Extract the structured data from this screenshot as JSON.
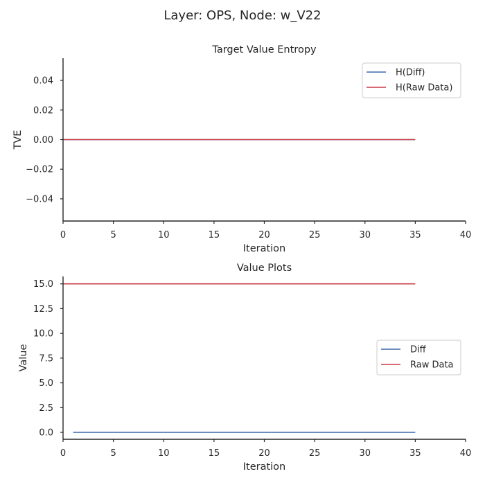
{
  "figure": {
    "suptitle": "Layer: OPS, Node: w_V22"
  },
  "colors": {
    "diff": "#3a68a8",
    "raw": "#c83c44"
  },
  "chart_data": [
    {
      "type": "line",
      "title": "Target Value Entropy",
      "xlabel": "Iteration",
      "ylabel": "TVE",
      "xlim": [
        0,
        40
      ],
      "ylim": [
        -0.055,
        0.055
      ],
      "xticks": [
        0,
        5,
        10,
        15,
        20,
        25,
        30,
        35,
        40
      ],
      "yticks": [
        -0.04,
        -0.02,
        0.0,
        0.02,
        0.04
      ],
      "ytick_labels": [
        "−0.04",
        "−0.02",
        "0.00",
        "0.02",
        "0.04"
      ],
      "legend": "top-right",
      "grid": false,
      "series": [
        {
          "name": "H(Diff)",
          "color": "#3a68a8",
          "x": [
            0,
            35
          ],
          "y": [
            0,
            0
          ]
        },
        {
          "name": "H(Raw Data)",
          "color": "#c83c44",
          "x": [
            0,
            35
          ],
          "y": [
            0,
            0
          ]
        }
      ]
    },
    {
      "type": "line",
      "title": "Value Plots",
      "xlabel": "Iteration",
      "ylabel": "Value",
      "xlim": [
        0,
        40
      ],
      "ylim": [
        -0.7,
        15.75
      ],
      "xticks": [
        0,
        5,
        10,
        15,
        20,
        25,
        30,
        35,
        40
      ],
      "yticks": [
        0.0,
        2.5,
        5.0,
        7.5,
        10.0,
        12.5,
        15.0
      ],
      "ytick_labels": [
        "0.0",
        "2.5",
        "5.0",
        "7.5",
        "10.0",
        "12.5",
        "15.0"
      ],
      "legend": "center-right",
      "grid": false,
      "series": [
        {
          "name": "Diff",
          "color": "#3a68a8",
          "x": [
            1,
            35
          ],
          "y": [
            0,
            0
          ]
        },
        {
          "name": "Raw Data",
          "color": "#c83c44",
          "x": [
            0,
            35
          ],
          "y": [
            15,
            15
          ]
        }
      ]
    }
  ]
}
